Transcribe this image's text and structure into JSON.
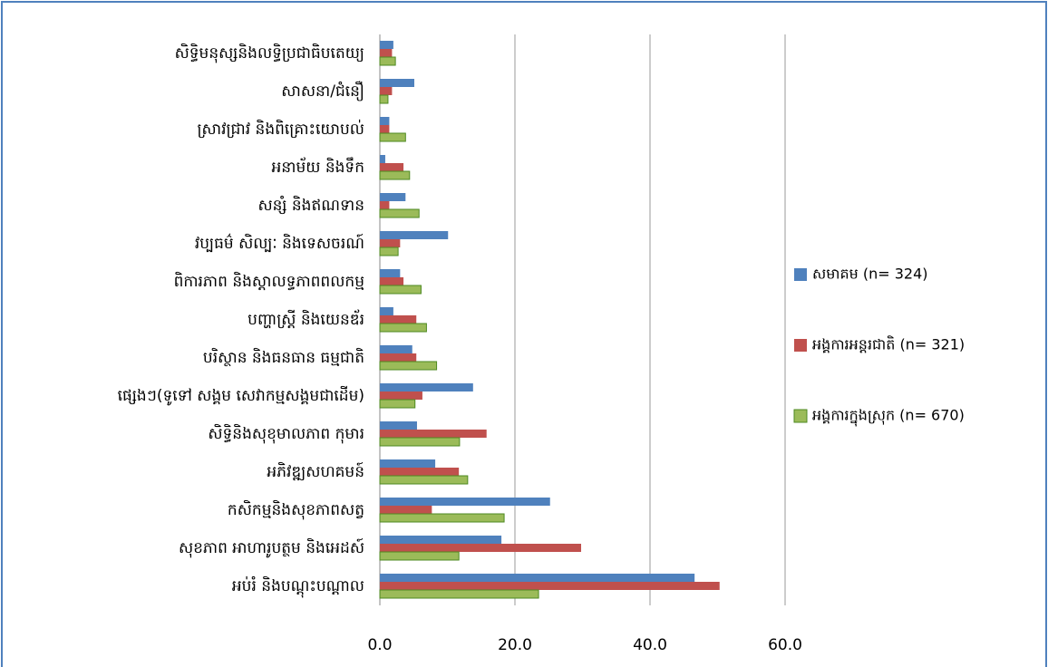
{
  "chart_data": {
    "type": "bar",
    "categories": [
      "សិទ្ធិមនុស្សនិងលទ្ធិប្រជាធិបតេយ្យ",
      "សាសនា/ជំនឿ",
      "ស្រាវជ្រាវ និងពិគ្រោះយោបល់",
      "អនាម័យ និងទឹក",
      "សន្សំ និងឥណទាន",
      "វប្បធម៌ សិល្បៈ និងទេសចរណ៍",
      "ពិការភាព និងស្តាលទ្ធភាពពលកម្ម",
      "បញ្ហាស្ត្រី និងយេនឌ័រ",
      "បរិស្ថាន និងធនធាន ធម្មជាតិ",
      "ផ្សេងៗ(ទូទៅ សង្គម សេវាកម្មសង្គមជាដើម)",
      "សិទ្ធិនិងសុខុមាលភាព កុមារ",
      "អភិវឌ្ឍសហគមន៍",
      "កសិកម្មនិងសុខភាពសត្វ",
      "សុខភាព អាហារូបត្ថម និងអេដស៍",
      "អប់រំ និងបណ្តុះបណ្តាល"
    ],
    "series": [
      {
        "name": "សមាគម (n= 324)",
        "color": "#4f81bd",
        "values": [
          2.0,
          5.1,
          1.4,
          0.8,
          3.8,
          10.1,
          3.0,
          2.0,
          4.8,
          13.8,
          5.5,
          8.2,
          25.2,
          18.0,
          46.6
        ]
      },
      {
        "name": "អង្គការអន្តរជាតិ (n= 321)",
        "color": "#c0504d",
        "values": [
          1.8,
          1.8,
          1.4,
          3.5,
          1.4,
          3.0,
          3.5,
          5.4,
          5.4,
          6.3,
          15.8,
          11.7,
          7.7,
          29.8,
          50.3
        ]
      },
      {
        "name": "អង្គការក្នុងស្រុក (n= 670)",
        "color": "#9bbb59",
        "values": [
          2.3,
          1.2,
          3.8,
          4.4,
          5.8,
          2.7,
          6.1,
          6.9,
          8.4,
          5.2,
          11.8,
          13.0,
          18.4,
          11.7,
          23.5
        ]
      }
    ],
    "xlim": [
      0,
      60
    ],
    "xticks": [
      {
        "value": 0,
        "label": "0.0"
      },
      {
        "value": 20,
        "label": "20.0"
      },
      {
        "value": 40,
        "label": "40.0"
      },
      {
        "value": 60,
        "label": "60.0"
      }
    ],
    "grid": true,
    "legend": "right"
  }
}
